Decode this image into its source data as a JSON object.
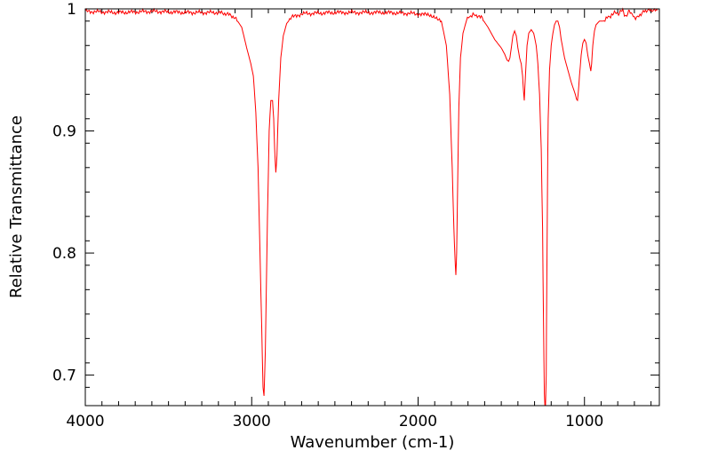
{
  "chart_data": {
    "type": "line",
    "title": "",
    "xlabel": "Wavenumber (cm-1)",
    "ylabel": "Relative Transmittance",
    "xlim": [
      4000,
      550
    ],
    "ylim": [
      0.675,
      1.0
    ],
    "x_reversed": true,
    "grid": false,
    "line_color": "#ff0000",
    "x_ticks": [
      4000,
      3000,
      2000,
      1000
    ],
    "x_tick_labels": [
      "4000",
      "3000",
      "2000",
      "1000"
    ],
    "y_ticks": [
      0.7,
      0.8,
      0.9,
      1.0
    ],
    "y_tick_labels": [
      "0.7",
      "0.8",
      "0.9",
      "1"
    ],
    "series": [
      {
        "x": [
          4000,
          3800,
          3600,
          3400,
          3200,
          3150,
          3100,
          3060,
          3030,
          3005,
          2990,
          2975,
          2962,
          2950,
          2940,
          2932,
          2926,
          2918,
          2905,
          2895,
          2885,
          2875,
          2868,
          2862,
          2855,
          2848,
          2838,
          2825,
          2810,
          2790,
          2760,
          2700,
          2500,
          2200,
          2000,
          1900,
          1860,
          1830,
          1810,
          1795,
          1785,
          1778,
          1773,
          1768,
          1762,
          1755,
          1745,
          1730,
          1710,
          1690,
          1670,
          1650,
          1620,
          1580,
          1540,
          1500,
          1480,
          1465,
          1456,
          1448,
          1440,
          1430,
          1420,
          1410,
          1400,
          1390,
          1380,
          1372,
          1366,
          1362,
          1355,
          1345,
          1335,
          1320,
          1305,
          1290,
          1280,
          1270,
          1260,
          1252,
          1246,
          1241,
          1238,
          1234,
          1230,
          1226,
          1222,
          1218,
          1210,
          1200,
          1190,
          1180,
          1170,
          1160,
          1150,
          1140,
          1120,
          1100,
          1080,
          1065,
          1055,
          1048,
          1042,
          1038,
          1030,
          1020,
          1010,
          1000,
          990,
          980,
          970,
          962,
          957,
          950,
          940,
          930,
          910,
          890,
          870,
          850,
          830,
          820,
          810,
          800,
          790,
          780,
          770,
          760,
          750,
          740,
          730,
          720,
          700,
          680,
          660,
          640,
          620,
          600,
          580,
          560
        ],
        "y": [
          0.998,
          0.997,
          0.998,
          0.997,
          0.997,
          0.996,
          0.993,
          0.985,
          0.968,
          0.955,
          0.945,
          0.915,
          0.87,
          0.8,
          0.74,
          0.69,
          0.683,
          0.72,
          0.83,
          0.9,
          0.925,
          0.925,
          0.91,
          0.885,
          0.866,
          0.88,
          0.925,
          0.96,
          0.978,
          0.988,
          0.993,
          0.996,
          0.997,
          0.997,
          0.996,
          0.994,
          0.99,
          0.97,
          0.93,
          0.87,
          0.82,
          0.795,
          0.782,
          0.8,
          0.86,
          0.92,
          0.96,
          0.98,
          0.99,
          0.994,
          0.995,
          0.995,
          0.993,
          0.985,
          0.975,
          0.968,
          0.963,
          0.958,
          0.957,
          0.96,
          0.968,
          0.978,
          0.982,
          0.978,
          0.968,
          0.96,
          0.955,
          0.945,
          0.932,
          0.925,
          0.945,
          0.97,
          0.98,
          0.983,
          0.98,
          0.97,
          0.955,
          0.93,
          0.885,
          0.82,
          0.74,
          0.685,
          0.675,
          0.675,
          0.7,
          0.78,
          0.86,
          0.91,
          0.95,
          0.97,
          0.98,
          0.987,
          0.99,
          0.99,
          0.985,
          0.975,
          0.96,
          0.95,
          0.94,
          0.934,
          0.93,
          0.926,
          0.925,
          0.93,
          0.945,
          0.962,
          0.972,
          0.975,
          0.972,
          0.962,
          0.955,
          0.949,
          0.955,
          0.97,
          0.982,
          0.987,
          0.99,
          0.99,
          0.992,
          0.994,
          0.995,
          0.997,
          0.998,
          0.996,
          0.996,
          0.998,
          0.999,
          0.996,
          0.994,
          0.996,
          0.998,
          0.996,
          0.993,
          0.993,
          0.996,
          0.998,
          0.999,
          0.999,
          0.999,
          0.999
        ]
      }
    ]
  }
}
